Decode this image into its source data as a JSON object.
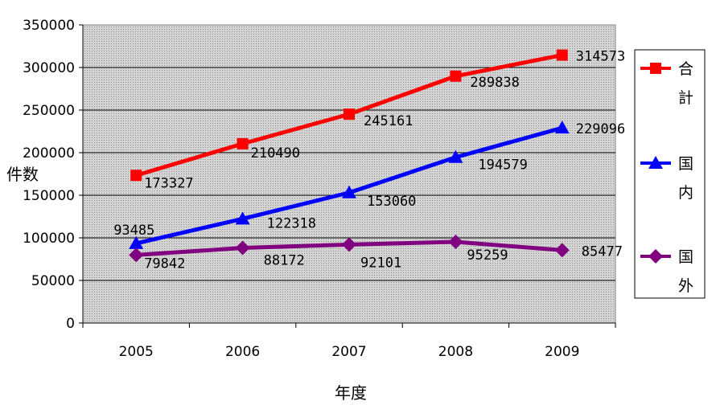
{
  "chart_data": {
    "type": "line",
    "title": "",
    "xlabel": "年度",
    "ylabel": "件数",
    "categories": [
      "2005",
      "2006",
      "2007",
      "2008",
      "2009"
    ],
    "ylim": [
      0,
      350000
    ],
    "yticks": [
      0,
      50000,
      100000,
      150000,
      200000,
      250000,
      300000,
      350000
    ],
    "grid": true,
    "legend_position": "right",
    "series": [
      {
        "name": "合計",
        "color": "#ff0000",
        "marker": "square",
        "values": [
          173327,
          210490,
          245161,
          289838,
          314573
        ]
      },
      {
        "name": "国内",
        "color": "#0000ff",
        "marker": "triangle",
        "values": [
          93485,
          122318,
          153060,
          194579,
          229096
        ]
      },
      {
        "name": "国外",
        "color": "#800080",
        "marker": "diamond",
        "values": [
          79842,
          88172,
          92101,
          95259,
          85477
        ]
      }
    ]
  }
}
